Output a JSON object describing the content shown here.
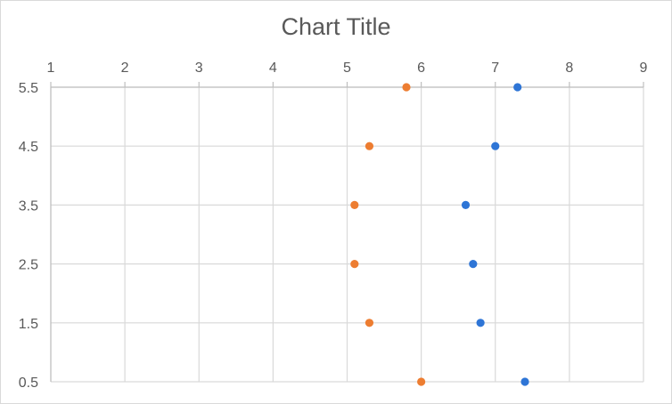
{
  "chart_data": {
    "type": "scatter",
    "title": "Chart Title",
    "xlabel": "",
    "ylabel": "",
    "x_axis_position": "top",
    "xlim": [
      1,
      9
    ],
    "x_ticks": [
      "1",
      "2",
      "3",
      "4",
      "5",
      "6",
      "7",
      "8",
      "9"
    ],
    "ylim": [
      0.5,
      5.5
    ],
    "y_ticks": [
      "0.5",
      "1.5",
      "2.5",
      "3.5",
      "4.5",
      "5.5"
    ],
    "grid": true,
    "legend": "none",
    "series": [
      {
        "color": "#2e75d6",
        "points": [
          {
            "x": 7.4,
            "y": 0.5
          },
          {
            "x": 6.8,
            "y": 1.5
          },
          {
            "x": 6.7,
            "y": 2.5
          },
          {
            "x": 6.6,
            "y": 3.5
          },
          {
            "x": 7.0,
            "y": 4.5
          },
          {
            "x": 7.3,
            "y": 5.5
          }
        ]
      },
      {
        "color": "#ed7d31",
        "points": [
          {
            "x": 6.0,
            "y": 0.5
          },
          {
            "x": 5.3,
            "y": 1.5
          },
          {
            "x": 5.1,
            "y": 2.5
          },
          {
            "x": 5.1,
            "y": 3.5
          },
          {
            "x": 5.3,
            "y": 4.5
          },
          {
            "x": 5.8,
            "y": 5.5
          }
        ]
      }
    ]
  }
}
